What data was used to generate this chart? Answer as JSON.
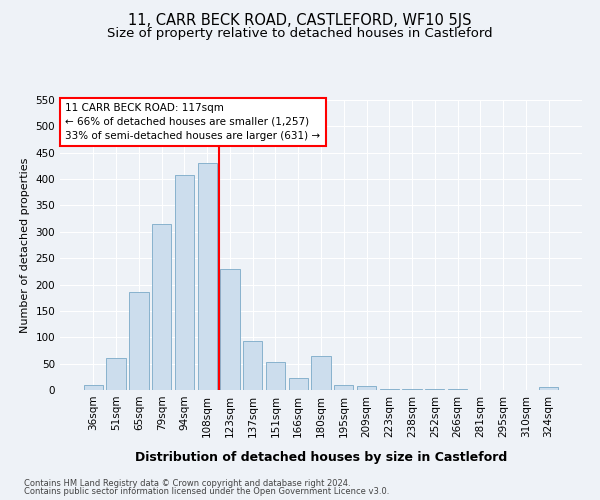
{
  "title": "11, CARR BECK ROAD, CASTLEFORD, WF10 5JS",
  "subtitle": "Size of property relative to detached houses in Castleford",
  "xlabel": "Distribution of detached houses by size in Castleford",
  "ylabel": "Number of detached properties",
  "bin_labels": [
    "36sqm",
    "51sqm",
    "65sqm",
    "79sqm",
    "94sqm",
    "108sqm",
    "123sqm",
    "137sqm",
    "151sqm",
    "166sqm",
    "180sqm",
    "195sqm",
    "209sqm",
    "223sqm",
    "238sqm",
    "252sqm",
    "266sqm",
    "281sqm",
    "295sqm",
    "310sqm",
    "324sqm"
  ],
  "bar_values": [
    10,
    60,
    185,
    315,
    407,
    430,
    230,
    92,
    53,
    22,
    65,
    10,
    8,
    1,
    1,
    1,
    1,
    0,
    0,
    0,
    5
  ],
  "bar_color": "#ccdded",
  "bar_edge_color": "#7aaac8",
  "vline_color": "red",
  "vline_x": 5.5,
  "annotation_text": "11 CARR BECK ROAD: 117sqm\n← 66% of detached houses are smaller (1,257)\n33% of semi-detached houses are larger (631) →",
  "annotation_box_color": "white",
  "annotation_box_edge_color": "red",
  "ylim": [
    0,
    550
  ],
  "yticks": [
    0,
    50,
    100,
    150,
    200,
    250,
    300,
    350,
    400,
    450,
    500,
    550
  ],
  "footer_line1": "Contains HM Land Registry data © Crown copyright and database right 2024.",
  "footer_line2": "Contains public sector information licensed under the Open Government Licence v3.0.",
  "bg_color": "#eef2f7",
  "title_fontsize": 10.5,
  "subtitle_fontsize": 9.5,
  "tick_fontsize": 7.5,
  "ylabel_fontsize": 8,
  "xlabel_fontsize": 9
}
